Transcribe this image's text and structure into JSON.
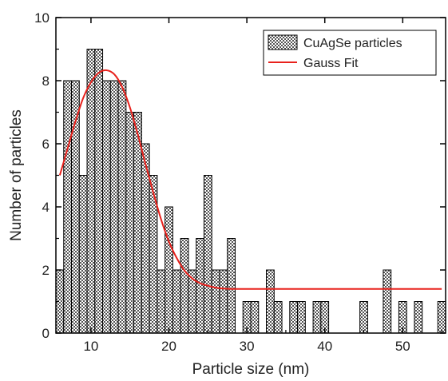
{
  "chart_data": {
    "type": "bar",
    "xlabel": "Particle size (nm)",
    "ylabel": "Number of particles",
    "xlim": [
      5.5,
      55.5
    ],
    "ylim": [
      0,
      10
    ],
    "xticks": [
      10,
      20,
      30,
      40,
      50
    ],
    "yticks": [
      0,
      2,
      4,
      6,
      8,
      10
    ],
    "grid": false,
    "legend_position": "top-right",
    "series": [
      {
        "name": "CuAgSe particles",
        "type": "histogram",
        "fill": "crosshatch",
        "bin_width": 1,
        "x": [
          6,
          7,
          8,
          9,
          10,
          11,
          12,
          13,
          14,
          15,
          16,
          17,
          18,
          19,
          20,
          21,
          22,
          23,
          24,
          25,
          26,
          27,
          28,
          29,
          30,
          31,
          32,
          33,
          34,
          35,
          36,
          37,
          38,
          39,
          40,
          41,
          42,
          43,
          44,
          45,
          46,
          47,
          48,
          49,
          50,
          51,
          52,
          53,
          54,
          55
        ],
        "values": [
          2,
          8,
          8,
          5,
          9,
          9,
          8,
          8,
          8,
          7,
          7,
          6,
          5,
          2,
          4,
          2,
          3,
          2,
          3,
          5,
          2,
          2,
          3,
          0,
          1,
          1,
          0,
          2,
          1,
          0,
          1,
          1,
          0,
          1,
          1,
          0,
          0,
          0,
          0,
          1,
          0,
          0,
          2,
          0,
          1,
          0,
          1,
          0,
          0,
          1
        ]
      },
      {
        "name": "Gauss Fit",
        "type": "line",
        "color": "#e8211c",
        "x": [
          6,
          7,
          8,
          9,
          10,
          11,
          12,
          13,
          14,
          15,
          16,
          17,
          18,
          19,
          20,
          21,
          22,
          23,
          24,
          25,
          26,
          27,
          28,
          29,
          30,
          32,
          35,
          40,
          45,
          50,
          55
        ],
        "values": [
          5.0,
          5.85,
          6.7,
          7.45,
          7.95,
          8.25,
          8.33,
          8.2,
          7.8,
          7.15,
          6.3,
          5.35,
          4.45,
          3.6,
          2.9,
          2.38,
          1.98,
          1.73,
          1.58,
          1.5,
          1.44,
          1.41,
          1.4,
          1.4,
          1.4,
          1.4,
          1.4,
          1.4,
          1.4,
          1.4,
          1.4
        ]
      }
    ]
  }
}
